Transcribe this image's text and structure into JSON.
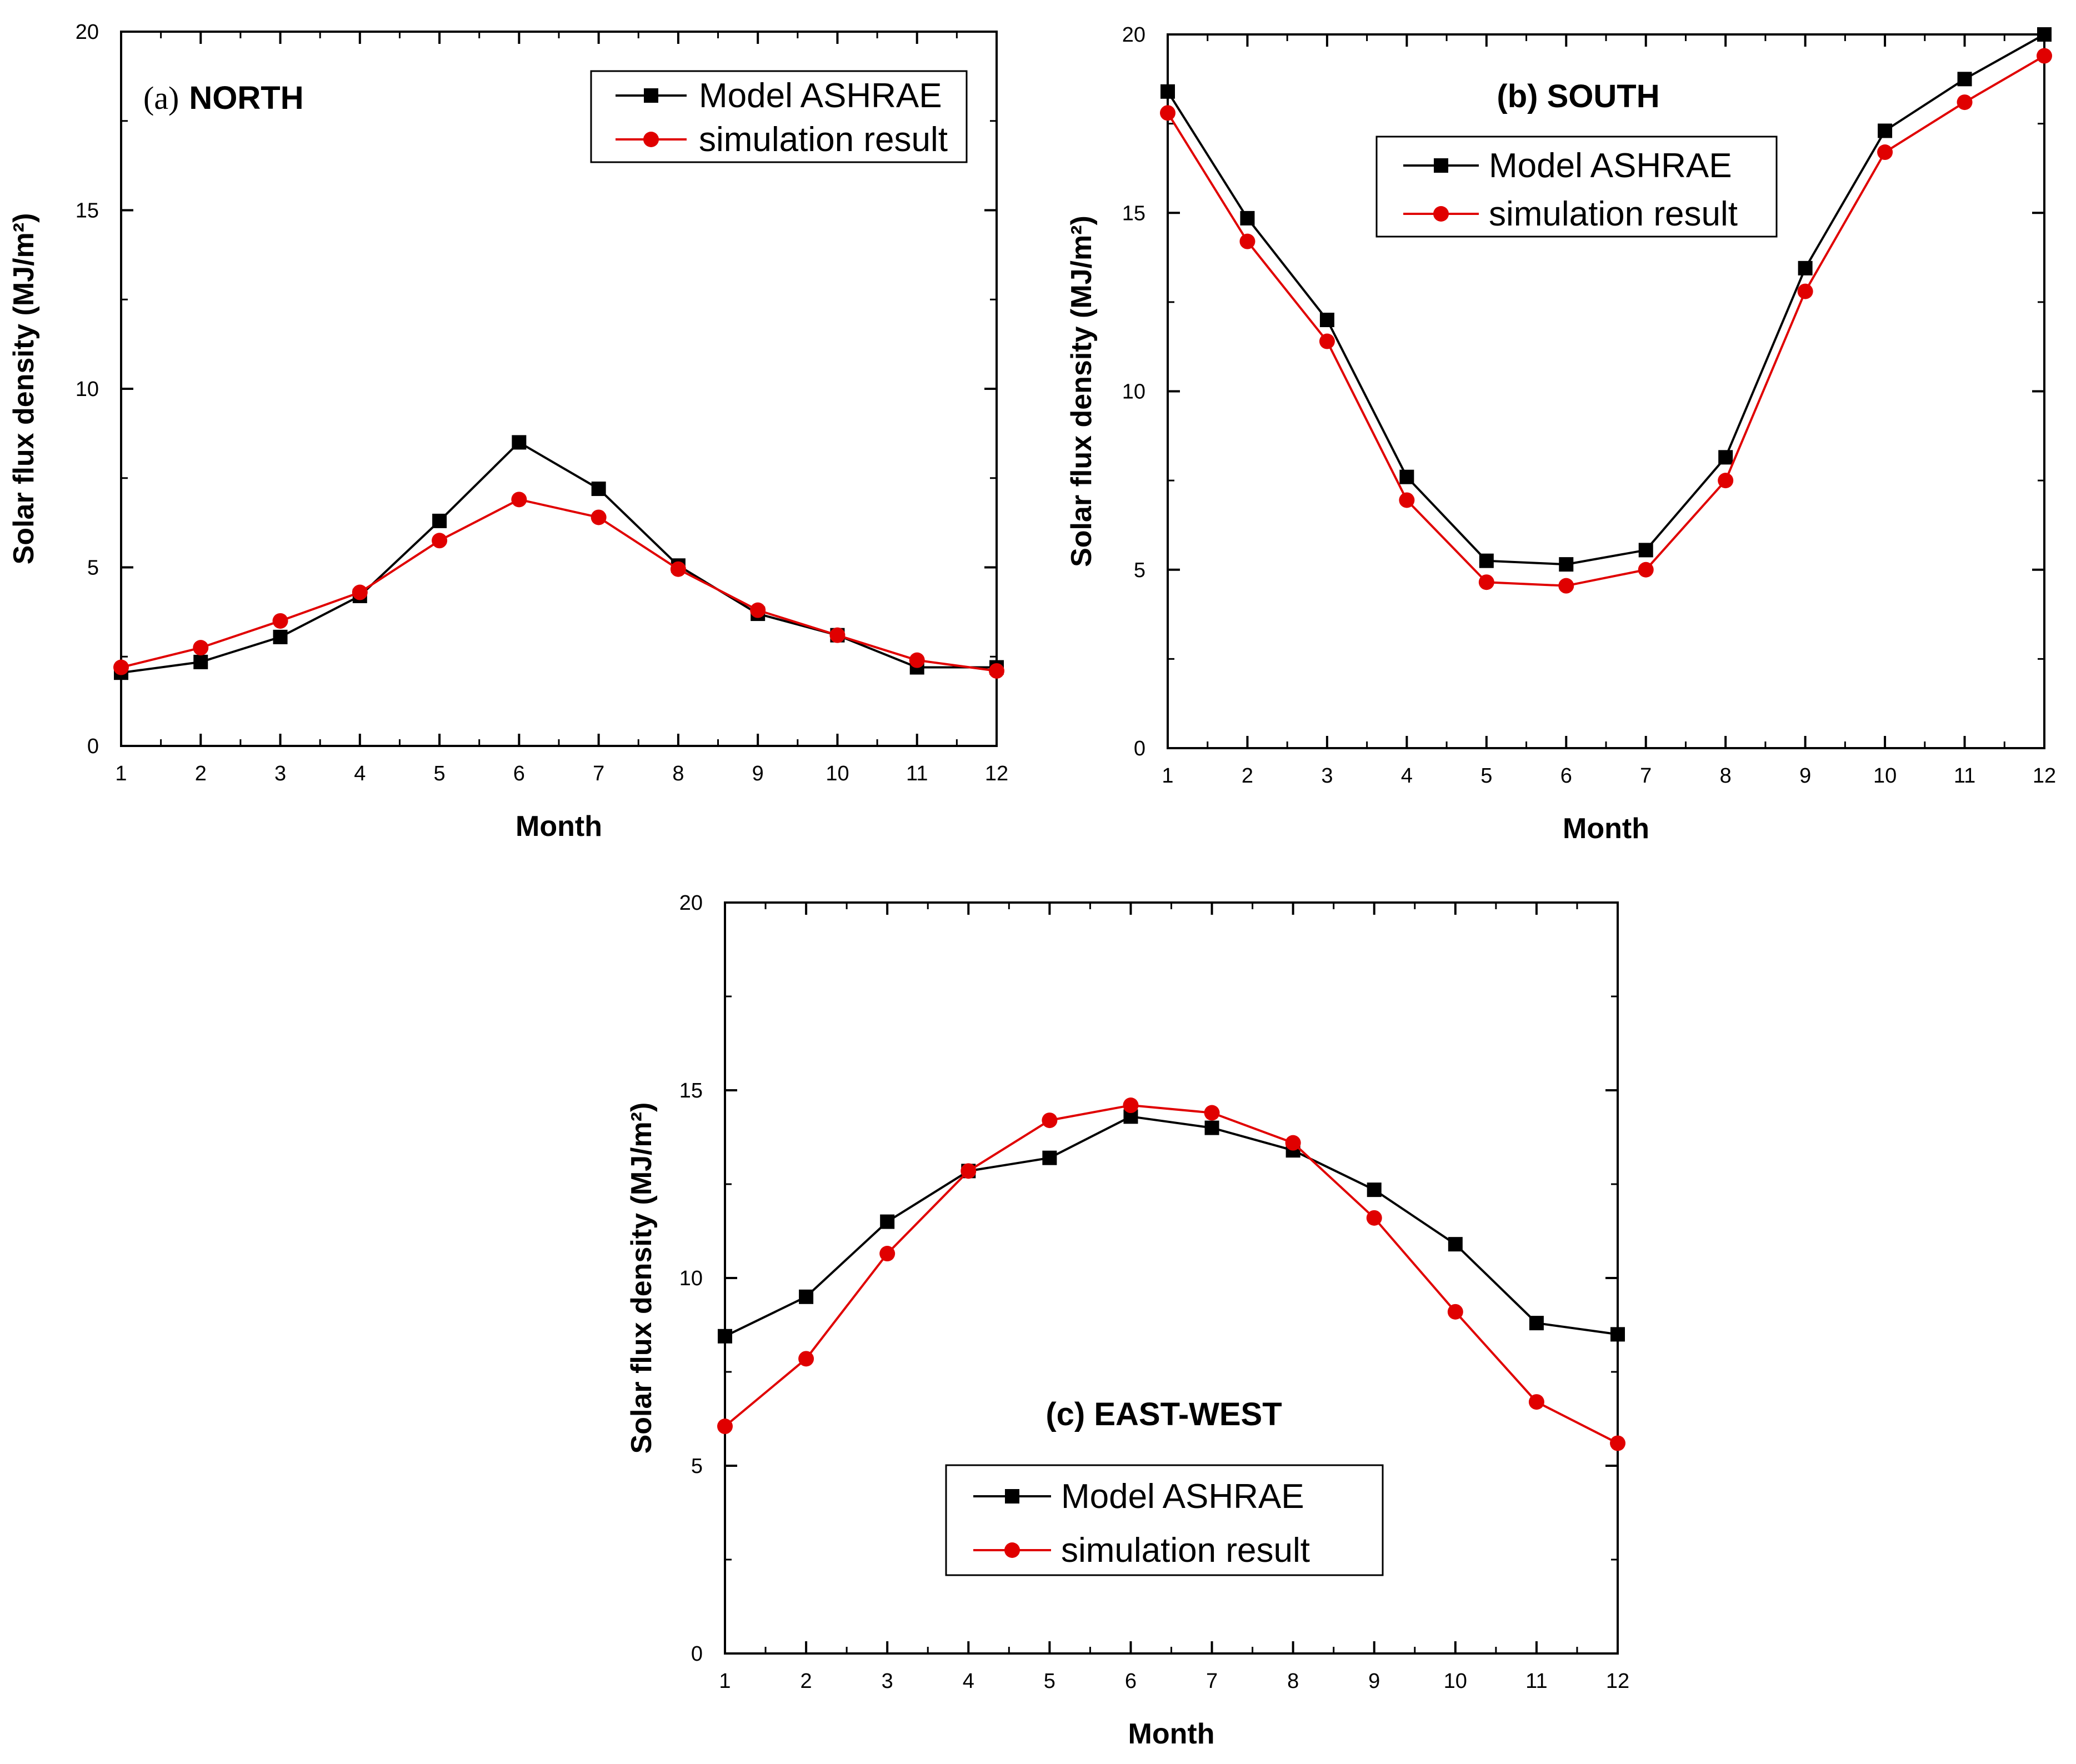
{
  "chart_data": [
    {
      "type": "line",
      "title": "(a) NORTH",
      "title_letter": "(a)",
      "title_text": "NORTH",
      "xlabel": "Month",
      "ylabel": "Solar flux density (MJ/m²)",
      "xlim": [
        1,
        12
      ],
      "ylim": [
        0,
        20
      ],
      "xticks": [
        1,
        2,
        3,
        4,
        5,
        6,
        7,
        8,
        9,
        10,
        11,
        12
      ],
      "yticks": [
        0,
        5,
        10,
        15,
        20
      ],
      "legend_position": "top-right",
      "x": [
        1,
        2,
        3,
        4,
        5,
        6,
        7,
        8,
        9,
        10,
        11,
        12
      ],
      "series": [
        {
          "name": "Model ASHRAE",
          "color": "#000000",
          "marker": "square",
          "values": [
            2.05,
            2.35,
            3.05,
            4.2,
            6.3,
            8.5,
            7.2,
            5.05,
            3.7,
            3.1,
            2.2,
            2.2
          ]
        },
        {
          "name": "simulation result",
          "color": "#e00000",
          "marker": "circle",
          "values": [
            2.2,
            2.75,
            3.5,
            4.3,
            5.75,
            6.9,
            6.4,
            4.95,
            3.8,
            3.1,
            2.4,
            2.1
          ]
        }
      ]
    },
    {
      "type": "line",
      "title": "(b) SOUTH",
      "title_letter": "",
      "title_text": "(b) SOUTH",
      "xlabel": "Month",
      "ylabel": "Solar flux density (MJ/m²)",
      "xlim": [
        1,
        12
      ],
      "ylim": [
        0,
        20
      ],
      "xticks": [
        1,
        2,
        3,
        4,
        5,
        6,
        7,
        8,
        9,
        10,
        11,
        12
      ],
      "yticks": [
        0,
        5,
        10,
        15,
        20
      ],
      "legend_position": "top-center",
      "x": [
        1,
        2,
        3,
        4,
        5,
        6,
        7,
        8,
        9,
        10,
        11,
        12
      ],
      "series": [
        {
          "name": "Model ASHRAE",
          "color": "#000000",
          "marker": "square",
          "values": [
            18.4,
            14.85,
            12.0,
            7.6,
            5.25,
            5.15,
            5.55,
            8.15,
            13.45,
            17.3,
            18.75,
            20.0
          ]
        },
        {
          "name": "simulation result",
          "color": "#e00000",
          "marker": "circle",
          "values": [
            17.8,
            14.2,
            11.4,
            6.95,
            4.65,
            4.55,
            5.0,
            7.5,
            12.8,
            16.7,
            18.1,
            19.4
          ]
        }
      ]
    },
    {
      "type": "line",
      "title": "(c) EAST-WEST",
      "title_letter": "",
      "title_text": "(c) EAST-WEST",
      "xlabel": "Month",
      "ylabel": "Solar flux density (MJ/m²)",
      "xlim": [
        1,
        12
      ],
      "ylim": [
        0,
        20
      ],
      "xticks": [
        1,
        2,
        3,
        4,
        5,
        6,
        7,
        8,
        9,
        10,
        11,
        12
      ],
      "yticks": [
        0,
        5,
        10,
        15,
        20
      ],
      "legend_position": "bottom-center",
      "x": [
        1,
        2,
        3,
        4,
        5,
        6,
        7,
        8,
        9,
        10,
        11,
        12
      ],
      "series": [
        {
          "name": "Model ASHRAE",
          "color": "#000000",
          "marker": "square",
          "values": [
            8.45,
            9.5,
            11.5,
            12.85,
            13.2,
            14.3,
            14.0,
            13.4,
            12.35,
            10.9,
            8.8,
            8.5
          ]
        },
        {
          "name": "simulation result",
          "color": "#e00000",
          "marker": "circle",
          "values": [
            6.05,
            7.85,
            10.65,
            12.85,
            14.2,
            14.6,
            14.4,
            13.6,
            11.6,
            9.1,
            6.7,
            5.6
          ]
        }
      ]
    }
  ]
}
